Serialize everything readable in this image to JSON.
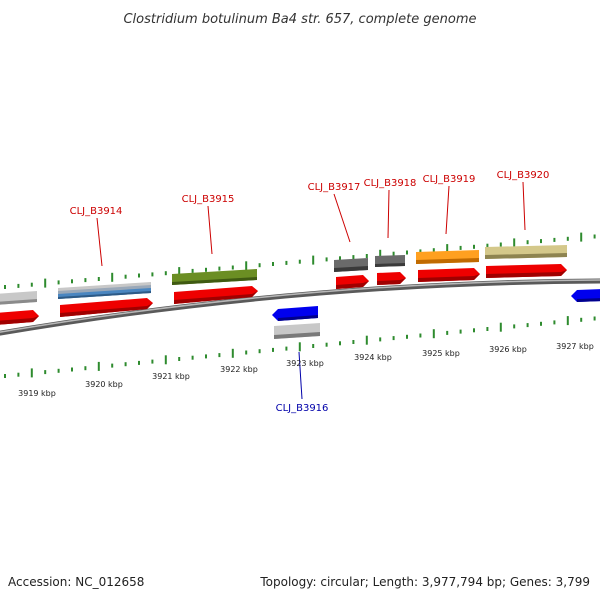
{
  "title": "Clostridium botulinum Ba4 str. 657, complete genome",
  "footer": {
    "accession": "Accession: NC_012658",
    "summary": "Topology: circular; Length: 3,977,794 bp; Genes: 3,799"
  },
  "colors": {
    "backbone": "#7a7a7a",
    "tick": "#2e8b2e",
    "cds": "#ee0000",
    "reverse_gene": "#0000ee",
    "label_forward": "#cc0000",
    "label_reverse": "#0000aa"
  },
  "ruler_labels": [
    "3919 kbp",
    "3920 kbp",
    "3921 kbp",
    "3922 kbp",
    "3923 kbp",
    "3924 kbp",
    "3925 kbp",
    "3926 kbp",
    "3927 kbp"
  ],
  "gene_labels": [
    {
      "text": "CLJ_B3914",
      "strand": "forward"
    },
    {
      "text": "CLJ_B3915",
      "strand": "forward"
    },
    {
      "text": "CLJ_B3916",
      "strand": "reverse"
    },
    {
      "text": "CLJ_B3917",
      "strand": "forward"
    },
    {
      "text": "CLJ_B3918",
      "strand": "forward"
    },
    {
      "text": "CLJ_B3919",
      "strand": "forward"
    },
    {
      "text": "CLJ_B3920",
      "strand": "forward"
    }
  ]
}
